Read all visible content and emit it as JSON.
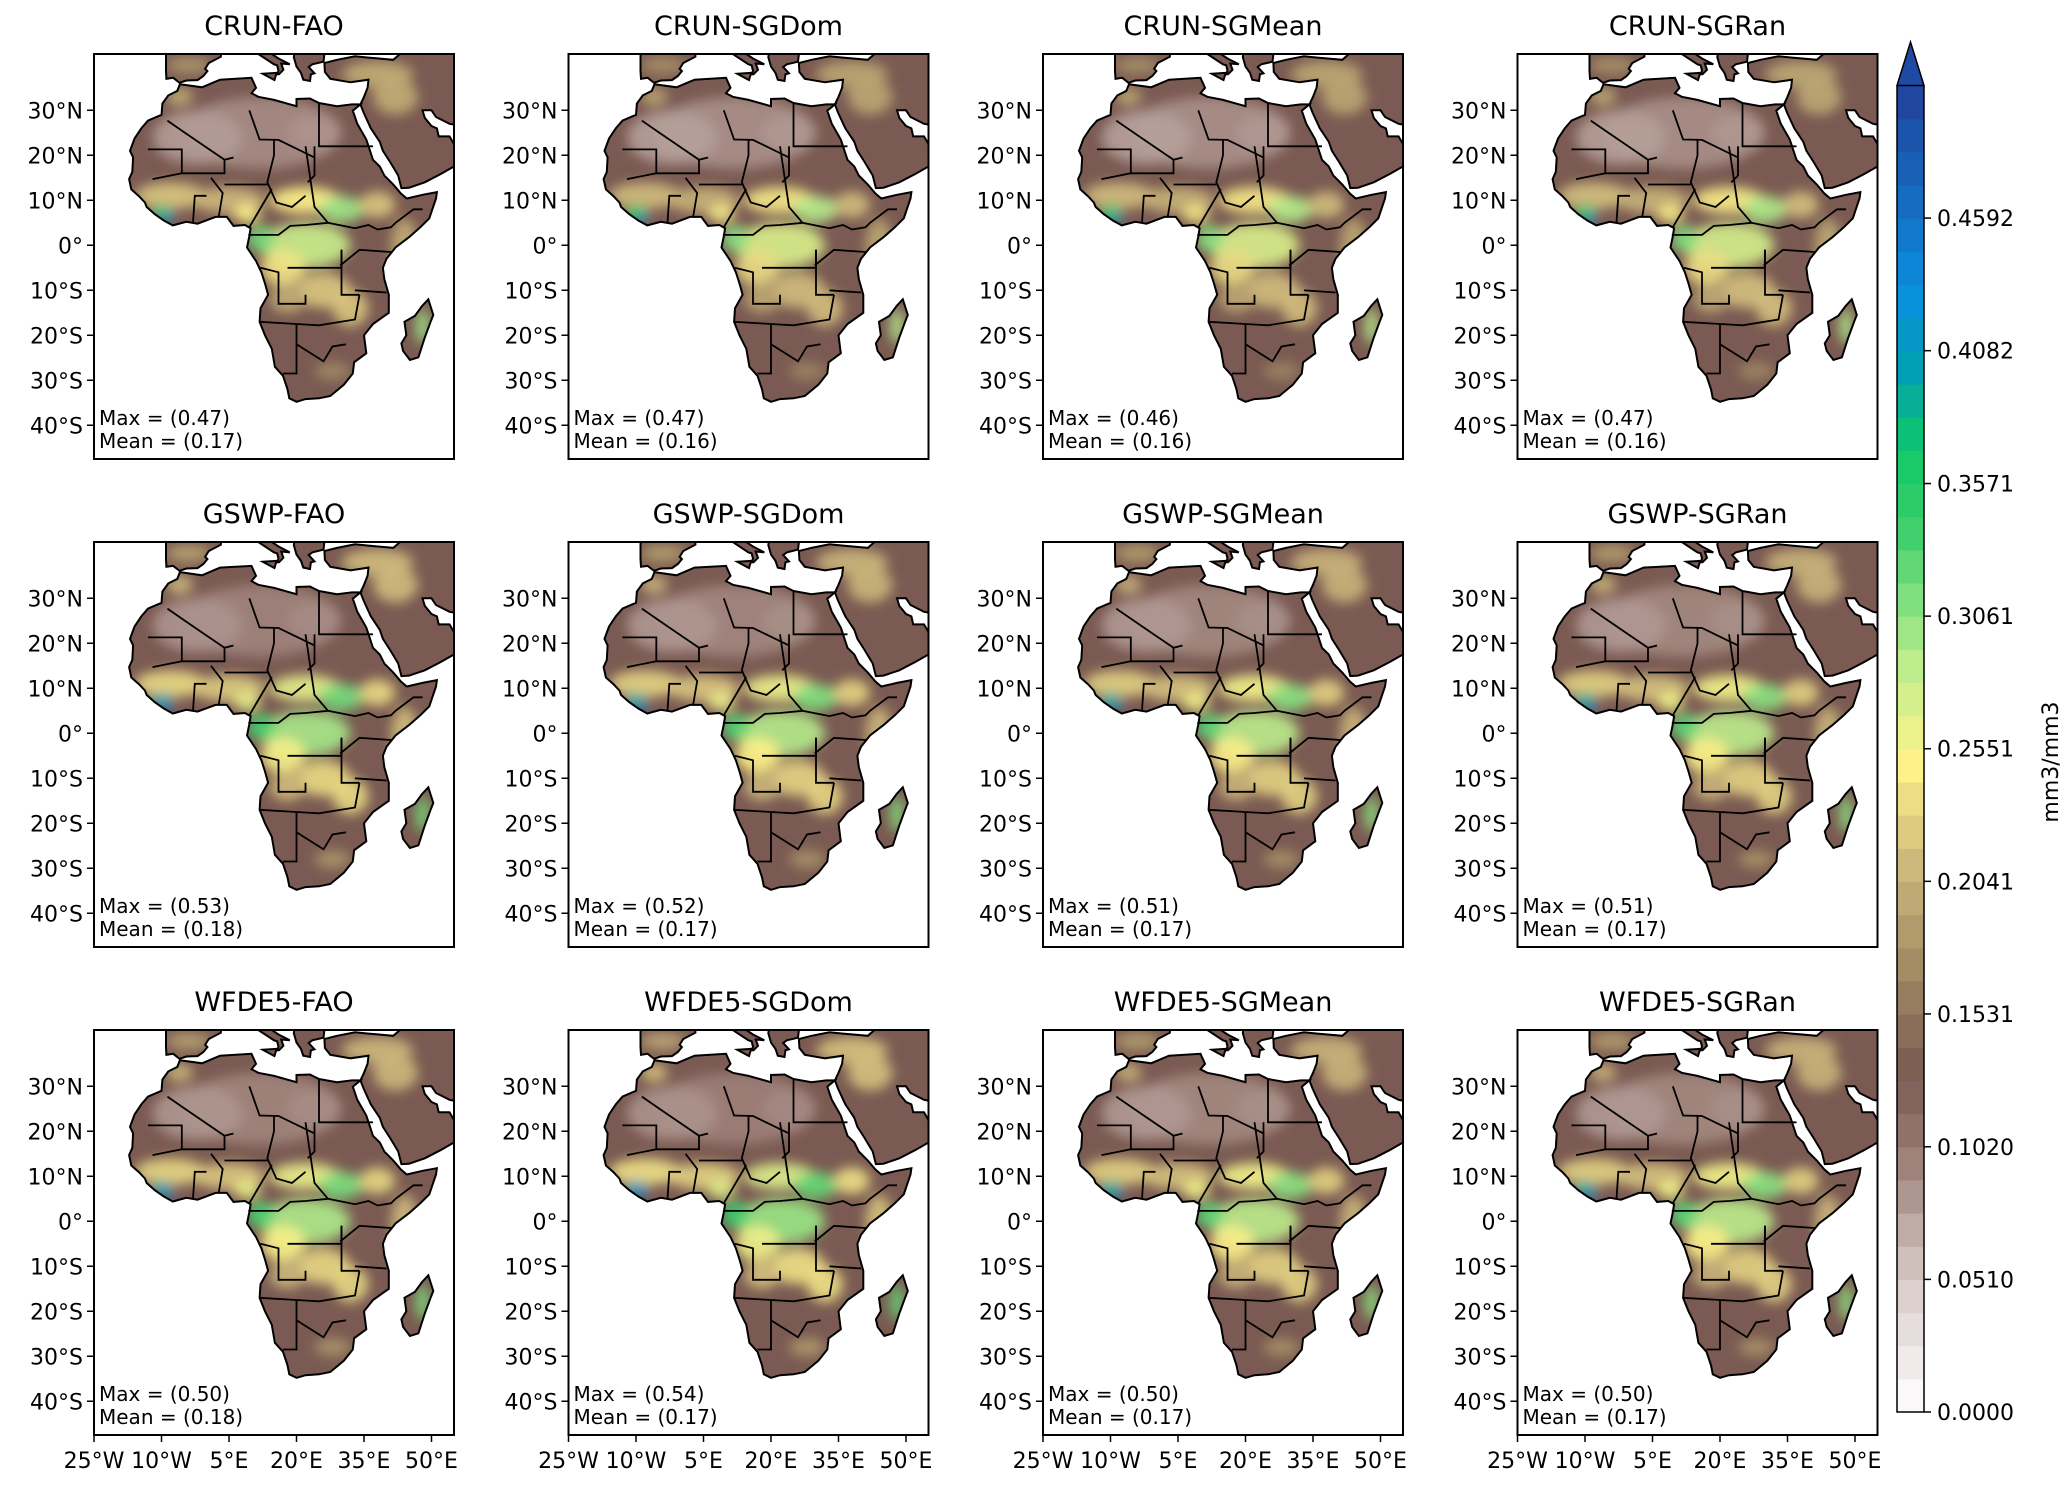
{
  "chart_data": {
    "type": "heatmap",
    "layout": "3x4 small multiples of maps",
    "xlim": [
      -25,
      55
    ],
    "ylim": [
      -47.5,
      42.5
    ],
    "x_ticks": [
      -25,
      -10,
      5,
      20,
      35,
      50
    ],
    "x_tick_labels": [
      "25°W",
      "10°W",
      "5°E",
      "20°E",
      "35°E",
      "50°E"
    ],
    "y_ticks": [
      30,
      20,
      10,
      0,
      -10,
      -20,
      -30,
      -40
    ],
    "y_tick_labels": [
      "30°N",
      "20°N",
      "10°N",
      "0°",
      "10°S",
      "20°S",
      "30°S",
      "40°S"
    ],
    "panels": [
      {
        "title": "CRUN-FAO",
        "max": "Max = (0.47)",
        "mean": "Mean = (0.17)",
        "max_value": 0.47,
        "mean_value": 0.17
      },
      {
        "title": "CRUN-SGDom",
        "max": "Max = (0.47)",
        "mean": "Mean = (0.16)",
        "max_value": 0.47,
        "mean_value": 0.16
      },
      {
        "title": "CRUN-SGMean",
        "max": "Max = (0.46)",
        "mean": "Mean = (0.16)",
        "max_value": 0.46,
        "mean_value": 0.16
      },
      {
        "title": "CRUN-SGRan",
        "max": "Max = (0.47)",
        "mean": "Mean = (0.16)",
        "max_value": 0.47,
        "mean_value": 0.16
      },
      {
        "title": "GSWP-FAO",
        "max": "Max = (0.53)",
        "mean": "Mean = (0.18)",
        "max_value": 0.53,
        "mean_value": 0.18
      },
      {
        "title": "GSWP-SGDom",
        "max": "Max = (0.52)",
        "mean": "Mean = (0.17)",
        "max_value": 0.52,
        "mean_value": 0.17
      },
      {
        "title": "GSWP-SGMean",
        "max": "Max = (0.51)",
        "mean": "Mean = (0.17)",
        "max_value": 0.51,
        "mean_value": 0.17
      },
      {
        "title": "GSWP-SGRan",
        "max": "Max = (0.51)",
        "mean": "Mean = (0.17)",
        "max_value": 0.51,
        "mean_value": 0.17
      },
      {
        "title": "WFDE5-FAO",
        "max": "Max = (0.50)",
        "mean": "Mean = (0.18)",
        "max_value": 0.5,
        "mean_value": 0.18
      },
      {
        "title": "WFDE5-SGDom",
        "max": "Max = (0.54)",
        "mean": "Mean = (0.17)",
        "max_value": 0.54,
        "mean_value": 0.17
      },
      {
        "title": "WFDE5-SGMean",
        "max": "Max = (0.50)",
        "mean": "Mean = (0.17)",
        "max_value": 0.5,
        "mean_value": 0.17
      },
      {
        "title": "WFDE5-SGRan",
        "max": "Max = (0.50)",
        "mean": "Mean = (0.17)",
        "max_value": 0.5,
        "mean_value": 0.17
      }
    ],
    "colorbar": {
      "label": "mm3/mm3",
      "range": [
        0,
        0.5102
      ],
      "extend": "max",
      "ticks": [
        0.0,
        0.051,
        0.102,
        0.1531,
        0.2041,
        0.2551,
        0.3061,
        0.3571,
        0.4082,
        0.4592
      ],
      "tick_labels": [
        "0.0000",
        "0.0510",
        "0.1020",
        "0.1531",
        "0.2041",
        "0.2551",
        "0.3061",
        "0.3571",
        "0.4082",
        "0.4592"
      ],
      "color_stops": [
        {
          "value": 0.0,
          "color": "#ffffff"
        },
        {
          "value": 0.05,
          "color": "#d8ccc8"
        },
        {
          "value": 0.1,
          "color": "#9a7c74"
        },
        {
          "value": 0.13,
          "color": "#7a5a52"
        },
        {
          "value": 0.17,
          "color": "#a08a64"
        },
        {
          "value": 0.21,
          "color": "#cdb87c"
        },
        {
          "value": 0.25,
          "color": "#fff38a"
        },
        {
          "value": 0.29,
          "color": "#b8ec8c"
        },
        {
          "value": 0.34,
          "color": "#3ccf6c"
        },
        {
          "value": 0.37,
          "color": "#10c868"
        },
        {
          "value": 0.4,
          "color": "#00a0b0"
        },
        {
          "value": 0.43,
          "color": "#0a90e0"
        },
        {
          "value": 0.51,
          "color": "#22409a"
        }
      ]
    }
  }
}
